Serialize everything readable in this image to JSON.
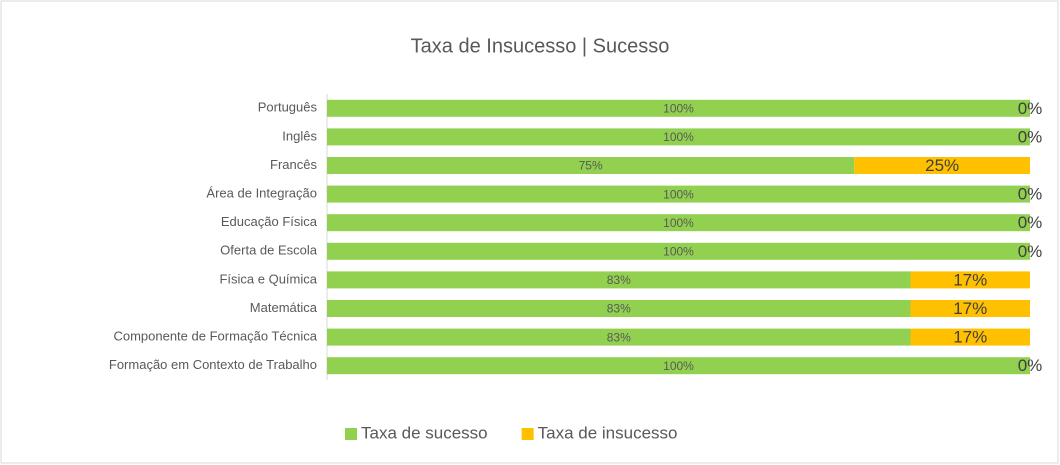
{
  "chart_data": {
    "type": "stacked_barh",
    "title": "Taxa de Insucesso | Sucesso",
    "categories": [
      "Português",
      "Inglês",
      "Francês",
      "Área de Integração",
      "Educação Física",
      "Oferta de Escola",
      "Física e Química",
      "Matemática",
      "Componente de Formação Técnica",
      "Formação em Contexto de Trabalho"
    ],
    "series": [
      {
        "name": "Taxa de sucesso",
        "color": "#92d050",
        "values": [
          100,
          100,
          75,
          100,
          100,
          100,
          83,
          83,
          83,
          100
        ],
        "value_labels": [
          "100%",
          "100%",
          "75%",
          "100%",
          "100%",
          "100%",
          "83%",
          "83%",
          "83%",
          "100%"
        ]
      },
      {
        "name": "Taxa de insucesso",
        "color": "#ffc000",
        "values": [
          0,
          0,
          25,
          0,
          0,
          0,
          17,
          17,
          17,
          0
        ],
        "value_labels": [
          "0%",
          "0%",
          "25%",
          "0%",
          "0%",
          "0%",
          "17%",
          "17%",
          "17%",
          "0%"
        ]
      }
    ],
    "xlim": [
      0,
      100
    ],
    "legend": "bottom"
  }
}
